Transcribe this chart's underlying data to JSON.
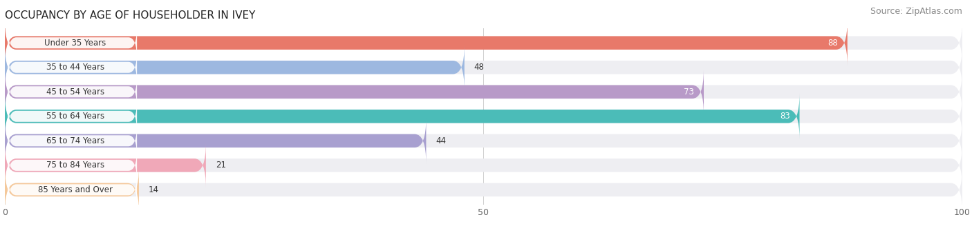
{
  "title": "OCCUPANCY BY AGE OF HOUSEHOLDER IN IVEY",
  "source": "Source: ZipAtlas.com",
  "categories": [
    "Under 35 Years",
    "35 to 44 Years",
    "45 to 54 Years",
    "55 to 64 Years",
    "65 to 74 Years",
    "75 to 84 Years",
    "85 Years and Over"
  ],
  "values": [
    88,
    48,
    73,
    83,
    44,
    21,
    14
  ],
  "bar_colors": [
    "#E8796A",
    "#9DB8E0",
    "#B89AC8",
    "#4BBCB8",
    "#A8A0D0",
    "#F0A8B8",
    "#F5C89A"
  ],
  "bar_bg_color": "#EEEEF2",
  "xlim": [
    0,
    100
  ],
  "xticks": [
    0,
    50,
    100
  ],
  "value_inside": [
    true,
    false,
    true,
    true,
    false,
    false,
    false
  ],
  "title_fontsize": 11,
  "source_fontsize": 9,
  "bar_label_fontsize": 8.5,
  "value_fontsize": 8.5,
  "background_color": "#ffffff",
  "label_pill_color": "#ffffff",
  "label_text_color": "#333333",
  "bar_height": 0.55,
  "bar_spacing": 1.0
}
